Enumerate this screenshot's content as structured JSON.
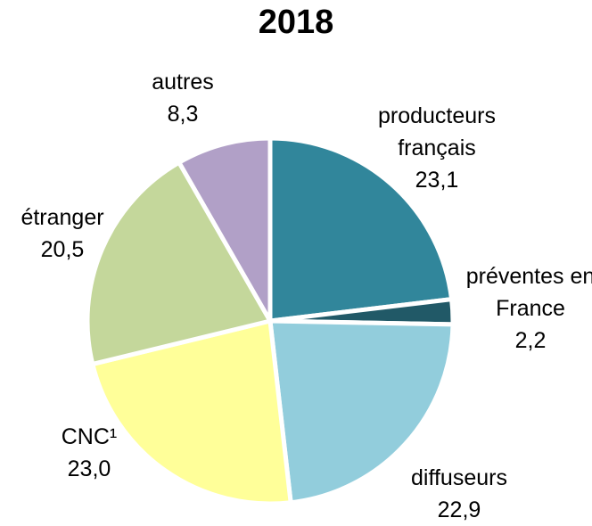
{
  "chart_data": {
    "type": "pie",
    "title": "2018",
    "categories": [
      "producteurs français",
      "préventes en France",
      "diffuseurs",
      "CNC¹",
      "étranger",
      "autres"
    ],
    "values": [
      23.1,
      2.2,
      22.9,
      23.0,
      20.5,
      8.3
    ],
    "value_labels": [
      "23,1",
      "2,2",
      "22,9",
      "23,0",
      "20,5",
      "8,3"
    ],
    "colors": [
      "#31869b",
      "#215967",
      "#92cddc",
      "#ffff99",
      "#c4d79b",
      "#b1a0c7"
    ]
  }
}
